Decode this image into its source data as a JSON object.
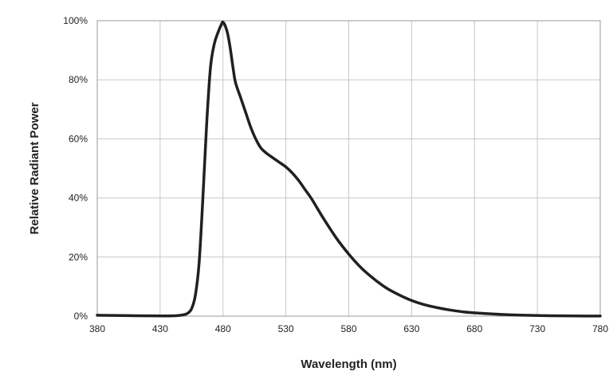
{
  "chart_data": {
    "type": "line",
    "xlabel": "Wavelength (nm)",
    "ylabel": "Relative Radiant Power",
    "xlim": [
      380,
      780
    ],
    "ylim": [
      0,
      100
    ],
    "x_ticks": [
      "380",
      "430",
      "480",
      "530",
      "580",
      "630",
      "680",
      "730",
      "780"
    ],
    "y_ticks": [
      "0%",
      "20%",
      "40%",
      "60%",
      "80%",
      "100%"
    ],
    "grid": true,
    "legend": "none",
    "line_color": "#231f20",
    "grid_color": "#c8c8c8",
    "series": [
      {
        "x": [
          380,
          400,
          420,
          440,
          448,
          452,
          455,
          458,
          461,
          464,
          467,
          470,
          473,
          476,
          479,
          480,
          482,
          484,
          486,
          488,
          490,
          494,
          498,
          502,
          506,
          510,
          515,
          520,
          525,
          530,
          535,
          540,
          545,
          550,
          555,
          560,
          570,
          580,
          590,
          600,
          610,
          620,
          630,
          640,
          650,
          660,
          670,
          680,
          700,
          720,
          740,
          760,
          780
        ],
        "y": [
          0.3,
          0.2,
          0.1,
          0.1,
          0.4,
          1.0,
          2.5,
          7,
          18,
          40,
          65,
          84,
          92,
          96,
          99,
          99.5,
          98,
          95,
          90,
          84,
          79,
          74,
          69,
          64,
          60,
          57,
          55,
          53.5,
          52,
          50.5,
          48.5,
          46,
          43,
          40,
          36.5,
          33,
          26.5,
          21,
          16.3,
          12.6,
          9.5,
          7.2,
          5.3,
          3.9,
          2.9,
          2.1,
          1.5,
          1.1,
          0.6,
          0.3,
          0.15,
          0.05,
          0.02
        ]
      }
    ]
  }
}
